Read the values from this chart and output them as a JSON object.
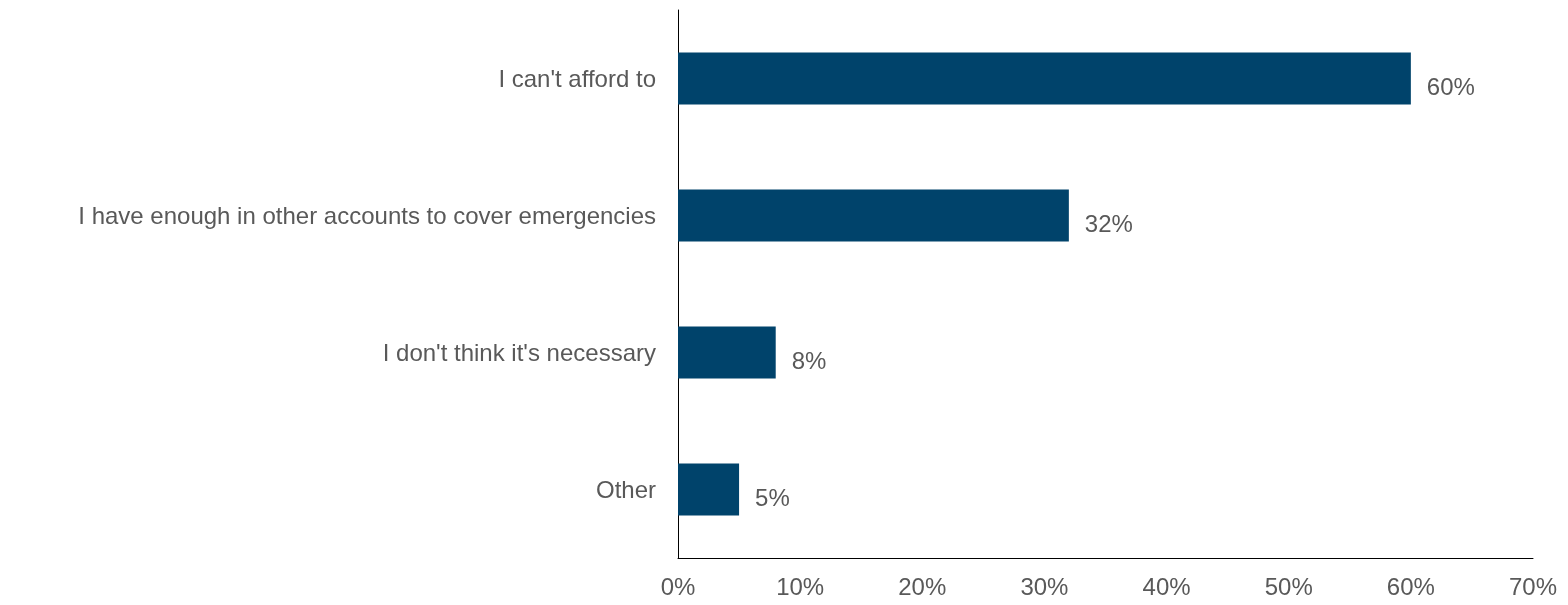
{
  "chart_data": {
    "type": "bar",
    "orientation": "horizontal",
    "categories": [
      "I can't afford to",
      "I have enough in other accounts to cover emergencies",
      "I don't think it's necessary",
      "Other"
    ],
    "values": [
      60,
      32,
      8,
      5
    ],
    "value_labels": [
      "60%",
      "32%",
      "8%",
      "5%"
    ],
    "color": "#00436b",
    "xlim": [
      0,
      70
    ],
    "xticks": [
      {
        "value": 0,
        "label": "0%"
      },
      {
        "value": 10,
        "label": "10%"
      },
      {
        "value": 20,
        "label": "20%"
      },
      {
        "value": 30,
        "label": "30%"
      },
      {
        "value": 40,
        "label": "40%"
      },
      {
        "value": 50,
        "label": "50%"
      },
      {
        "value": 60,
        "label": "60%"
      },
      {
        "value": 70,
        "label": "70%"
      }
    ],
    "grid": false
  }
}
